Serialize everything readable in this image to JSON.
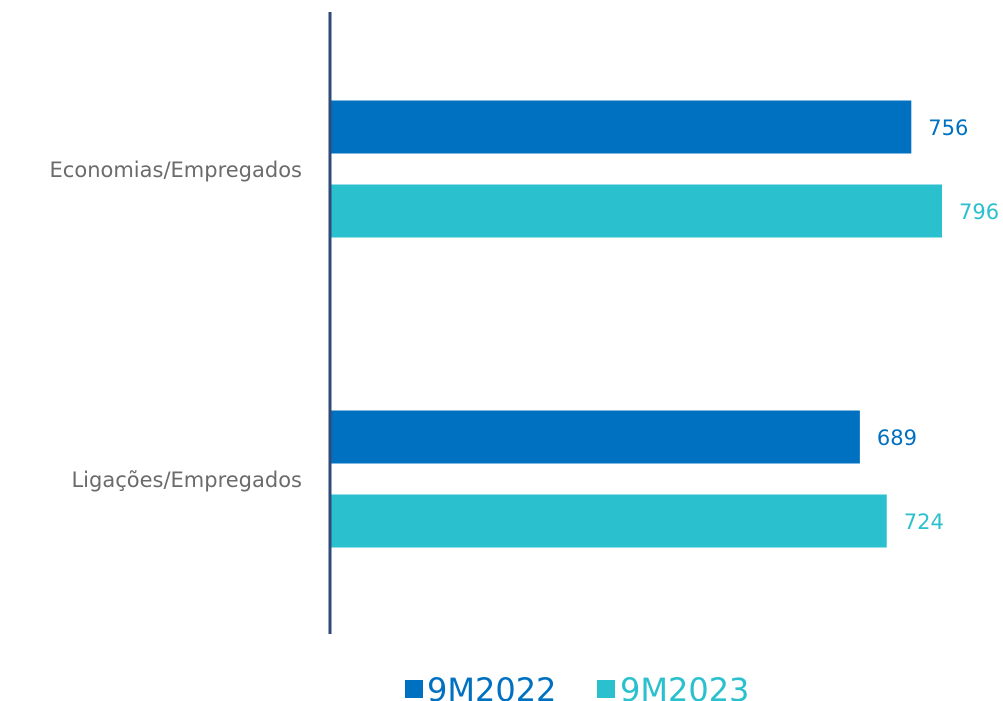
{
  "chart_data": {
    "type": "bar",
    "orientation": "horizontal",
    "categories": [
      "Economias/Empregados",
      "Ligações/Empregados"
    ],
    "series": [
      {
        "name": "9M2022",
        "values": [
          756,
          689
        ],
        "color": "#0070C0"
      },
      {
        "name": "9M2023",
        "values": [
          796,
          724
        ],
        "color": "#2BC0CD"
      }
    ],
    "title": "",
    "xlabel": "",
    "ylabel": "",
    "xlim": [
      0,
      800
    ],
    "grid": false,
    "legend": "bottom-center",
    "axis_color": "#2F4A7A",
    "category_label_color": "#6B6B6B"
  }
}
